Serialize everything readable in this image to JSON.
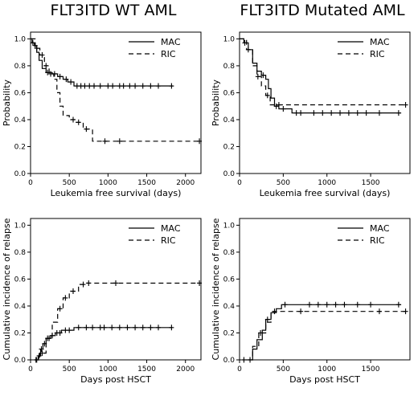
{
  "titles": {
    "left": "FLT3ITD WT AML",
    "right": "FLT3ITD Mutated AML"
  },
  "chart_data": [
    {
      "id": "wt-lfs",
      "type": "line",
      "xlabel": "Leukemia free survival (days)",
      "ylabel": "Probability",
      "xlim": [
        0,
        2200
      ],
      "ylim": [
        0,
        1.05
      ],
      "xticks": [
        0,
        500,
        1000,
        1500,
        2000
      ],
      "yticks": [
        0.0,
        0.2,
        0.4,
        0.6,
        0.8,
        1.0
      ],
      "legend_position": "top-right",
      "series": [
        {
          "name": "MAC",
          "dash": "solid",
          "points": [
            [
              0,
              1.0
            ],
            [
              20,
              0.97
            ],
            [
              50,
              0.95
            ],
            [
              80,
              0.9
            ],
            [
              110,
              0.84
            ],
            [
              150,
              0.78
            ],
            [
              200,
              0.75
            ],
            [
              280,
              0.74
            ],
            [
              350,
              0.72
            ],
            [
              420,
              0.7
            ],
            [
              480,
              0.68
            ],
            [
              560,
              0.65
            ],
            [
              1840,
              0.65
            ]
          ],
          "censor": [
            [
              30,
              0.97
            ],
            [
              60,
              0.95
            ],
            [
              220,
              0.75
            ],
            [
              310,
              0.74
            ],
            [
              380,
              0.72
            ],
            [
              460,
              0.7
            ],
            [
              520,
              0.68
            ],
            [
              600,
              0.65
            ],
            [
              650,
              0.65
            ],
            [
              700,
              0.65
            ],
            [
              760,
              0.65
            ],
            [
              820,
              0.65
            ],
            [
              900,
              0.65
            ],
            [
              1000,
              0.65
            ],
            [
              1060,
              0.65
            ],
            [
              1150,
              0.65
            ],
            [
              1200,
              0.65
            ],
            [
              1280,
              0.65
            ],
            [
              1350,
              0.65
            ],
            [
              1450,
              0.65
            ],
            [
              1550,
              0.65
            ],
            [
              1650,
              0.65
            ],
            [
              1820,
              0.65
            ]
          ]
        },
        {
          "name": "RIC",
          "dash": "dashed",
          "points": [
            [
              0,
              1.0
            ],
            [
              60,
              0.93
            ],
            [
              120,
              0.88
            ],
            [
              180,
              0.8
            ],
            [
              240,
              0.74
            ],
            [
              300,
              0.7
            ],
            [
              340,
              0.6
            ],
            [
              380,
              0.5
            ],
            [
              420,
              0.43
            ],
            [
              500,
              0.4
            ],
            [
              580,
              0.38
            ],
            [
              680,
              0.33
            ],
            [
              800,
              0.24
            ],
            [
              2200,
              0.24
            ]
          ],
          "censor": [
            [
              80,
              0.93
            ],
            [
              150,
              0.88
            ],
            [
              200,
              0.8
            ],
            [
              260,
              0.74
            ],
            [
              550,
              0.4
            ],
            [
              620,
              0.38
            ],
            [
              720,
              0.33
            ],
            [
              960,
              0.24
            ],
            [
              1150,
              0.24
            ],
            [
              2180,
              0.24
            ]
          ]
        }
      ]
    },
    {
      "id": "mut-lfs",
      "type": "line",
      "xlabel": "Leukemia free survival (days)",
      "ylabel": "Probability",
      "xlim": [
        0,
        1950
      ],
      "ylim": [
        0,
        1.05
      ],
      "xticks": [
        0,
        500,
        1000,
        1500
      ],
      "yticks": [
        0.0,
        0.2,
        0.4,
        0.6,
        0.8,
        1.0
      ],
      "legend_position": "top-right",
      "series": [
        {
          "name": "MAC",
          "dash": "solid",
          "points": [
            [
              0,
              1.0
            ],
            [
              50,
              0.97
            ],
            [
              100,
              0.92
            ],
            [
              150,
              0.82
            ],
            [
              200,
              0.76
            ],
            [
              250,
              0.73
            ],
            [
              300,
              0.7
            ],
            [
              330,
              0.63
            ],
            [
              360,
              0.56
            ],
            [
              400,
              0.5
            ],
            [
              450,
              0.48
            ],
            [
              600,
              0.45
            ],
            [
              1850,
              0.45
            ]
          ],
          "censor": [
            [
              60,
              0.97
            ],
            [
              270,
              0.73
            ],
            [
              420,
              0.5
            ],
            [
              500,
              0.48
            ],
            [
              650,
              0.45
            ],
            [
              700,
              0.45
            ],
            [
              850,
              0.45
            ],
            [
              950,
              0.45
            ],
            [
              1050,
              0.45
            ],
            [
              1150,
              0.45
            ],
            [
              1250,
              0.45
            ],
            [
              1350,
              0.45
            ],
            [
              1450,
              0.45
            ],
            [
              1600,
              0.45
            ],
            [
              1820,
              0.45
            ]
          ]
        },
        {
          "name": "RIC",
          "dash": "dashed",
          "points": [
            [
              0,
              1.0
            ],
            [
              80,
              0.92
            ],
            [
              150,
              0.8
            ],
            [
              200,
              0.72
            ],
            [
              250,
              0.65
            ],
            [
              300,
              0.58
            ],
            [
              350,
              0.51
            ],
            [
              1900,
              0.51
            ]
          ],
          "censor": [
            [
              100,
              0.92
            ],
            [
              210,
              0.72
            ],
            [
              320,
              0.58
            ],
            [
              450,
              0.51
            ],
            [
              1900,
              0.51
            ]
          ]
        }
      ]
    },
    {
      "id": "wt-cir",
      "type": "line",
      "xlabel": "Days post HSCT",
      "ylabel": "Cumulative incidence of relapse",
      "xlim": [
        0,
        2200
      ],
      "ylim": [
        0,
        1.05
      ],
      "xticks": [
        0,
        500,
        1000,
        1500,
        2000
      ],
      "yticks": [
        0.0,
        0.2,
        0.4,
        0.6,
        0.8,
        1.0
      ],
      "legend_position": "top-right",
      "series": [
        {
          "name": "MAC",
          "dash": "solid",
          "points": [
            [
              50,
              0.0
            ],
            [
              100,
              0.03
            ],
            [
              130,
              0.08
            ],
            [
              160,
              0.12
            ],
            [
              200,
              0.16
            ],
            [
              260,
              0.18
            ],
            [
              320,
              0.2
            ],
            [
              400,
              0.22
            ],
            [
              560,
              0.24
            ],
            [
              1830,
              0.24
            ]
          ],
          "censor": [
            [
              70,
              0.0
            ],
            [
              110,
              0.03
            ],
            [
              140,
              0.08
            ],
            [
              180,
              0.12
            ],
            [
              220,
              0.16
            ],
            [
              280,
              0.18
            ],
            [
              340,
              0.2
            ],
            [
              380,
              0.2
            ],
            [
              450,
              0.22
            ],
            [
              500,
              0.22
            ],
            [
              620,
              0.24
            ],
            [
              720,
              0.24
            ],
            [
              800,
              0.24
            ],
            [
              900,
              0.24
            ],
            [
              950,
              0.24
            ],
            [
              1050,
              0.24
            ],
            [
              1150,
              0.24
            ],
            [
              1250,
              0.24
            ],
            [
              1350,
              0.24
            ],
            [
              1450,
              0.24
            ],
            [
              1550,
              0.24
            ],
            [
              1650,
              0.24
            ],
            [
              1820,
              0.24
            ]
          ]
        },
        {
          "name": "RIC",
          "dash": "dashed",
          "points": [
            [
              50,
              0.0
            ],
            [
              120,
              0.05
            ],
            [
              200,
              0.16
            ],
            [
              280,
              0.28
            ],
            [
              350,
              0.38
            ],
            [
              420,
              0.46
            ],
            [
              500,
              0.51
            ],
            [
              620,
              0.56
            ],
            [
              700,
              0.57
            ],
            [
              2200,
              0.57
            ]
          ],
          "censor": [
            [
              80,
              0.0
            ],
            [
              150,
              0.05
            ],
            [
              240,
              0.16
            ],
            [
              380,
              0.38
            ],
            [
              450,
              0.46
            ],
            [
              550,
              0.51
            ],
            [
              680,
              0.56
            ],
            [
              750,
              0.57
            ],
            [
              1100,
              0.57
            ],
            [
              2180,
              0.57
            ]
          ]
        }
      ]
    },
    {
      "id": "mut-cir",
      "type": "line",
      "xlabel": "Days post HSCT",
      "ylabel": "Cumulative incidence of relapse",
      "xlim": [
        0,
        1950
      ],
      "ylim": [
        0,
        1.05
      ],
      "xticks": [
        0,
        500,
        1000,
        1500
      ],
      "yticks": [
        0.0,
        0.2,
        0.4,
        0.6,
        0.8,
        1.0
      ],
      "legend_position": "top-right",
      "series": [
        {
          "name": "MAC",
          "dash": "solid",
          "points": [
            [
              30,
              0.0
            ],
            [
              100,
              0.0
            ],
            [
              150,
              0.08
            ],
            [
              200,
              0.15
            ],
            [
              260,
              0.22
            ],
            [
              300,
              0.3
            ],
            [
              360,
              0.35
            ],
            [
              420,
              0.38
            ],
            [
              480,
              0.41
            ],
            [
              1850,
              0.41
            ]
          ],
          "censor": [
            [
              50,
              0.0
            ],
            [
              320,
              0.3
            ],
            [
              520,
              0.41
            ],
            [
              800,
              0.41
            ],
            [
              900,
              0.41
            ],
            [
              1000,
              0.41
            ],
            [
              1100,
              0.41
            ],
            [
              1200,
              0.41
            ],
            [
              1350,
              0.41
            ],
            [
              1500,
              0.41
            ],
            [
              1820,
              0.41
            ]
          ]
        },
        {
          "name": "RIC",
          "dash": "dashed",
          "points": [
            [
              100,
              0.0
            ],
            [
              150,
              0.1
            ],
            [
              220,
              0.2
            ],
            [
              300,
              0.28
            ],
            [
              360,
              0.36
            ],
            [
              1900,
              0.36
            ]
          ],
          "censor": [
            [
              120,
              0.0
            ],
            [
              240,
              0.2
            ],
            [
              400,
              0.36
            ],
            [
              700,
              0.36
            ],
            [
              1600,
              0.36
            ],
            [
              1900,
              0.36
            ]
          ]
        }
      ]
    }
  ]
}
